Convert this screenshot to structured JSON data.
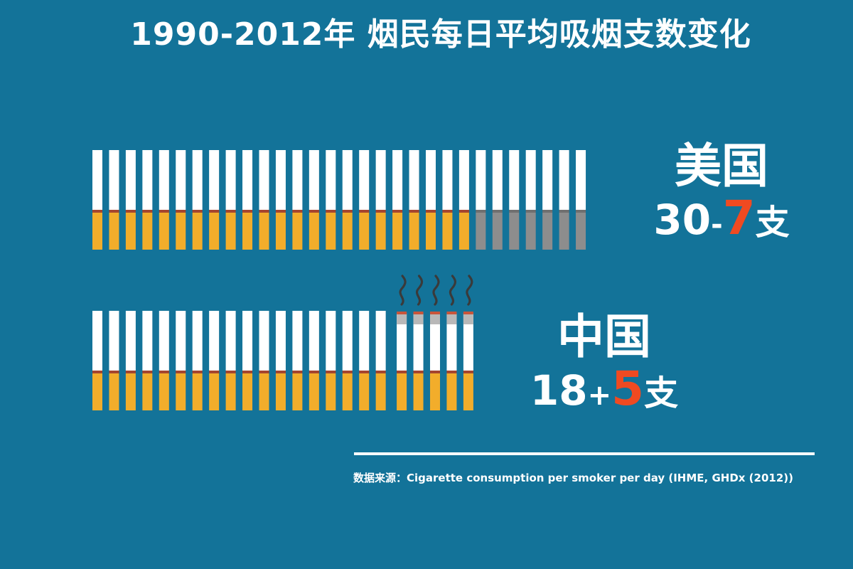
{
  "title": "1990-2012年 烟民每日平均吸烟支数变化",
  "chart_data": {
    "type": "pictograph",
    "title": "1990-2012年 烟民每日平均吸烟支数变化",
    "unit": "支",
    "series": [
      {
        "name": "美国",
        "total_1990": 30,
        "change": -7,
        "total_2012": 23,
        "display": {
          "base": "30",
          "op": "-",
          "delta": "7",
          "unit": "支"
        }
      },
      {
        "name": "中国",
        "total_1990": 18,
        "change": 5,
        "total_2012": 23,
        "display": {
          "base": "18",
          "op": "+",
          "delta": "5",
          "unit": "支"
        }
      }
    ],
    "colors": {
      "background": "#137399",
      "paper": "#ffffff",
      "filter": "#f2ad2b",
      "filter_removed": "#8d8d8d",
      "band": "#a5452f",
      "ash": "#b8b8b8",
      "highlight": "#f04a21",
      "smoke": "#3a3a3a"
    }
  },
  "source_text": "数据来源：Cigarette consumption per smoker per day (IHME, GHDx (2012))"
}
